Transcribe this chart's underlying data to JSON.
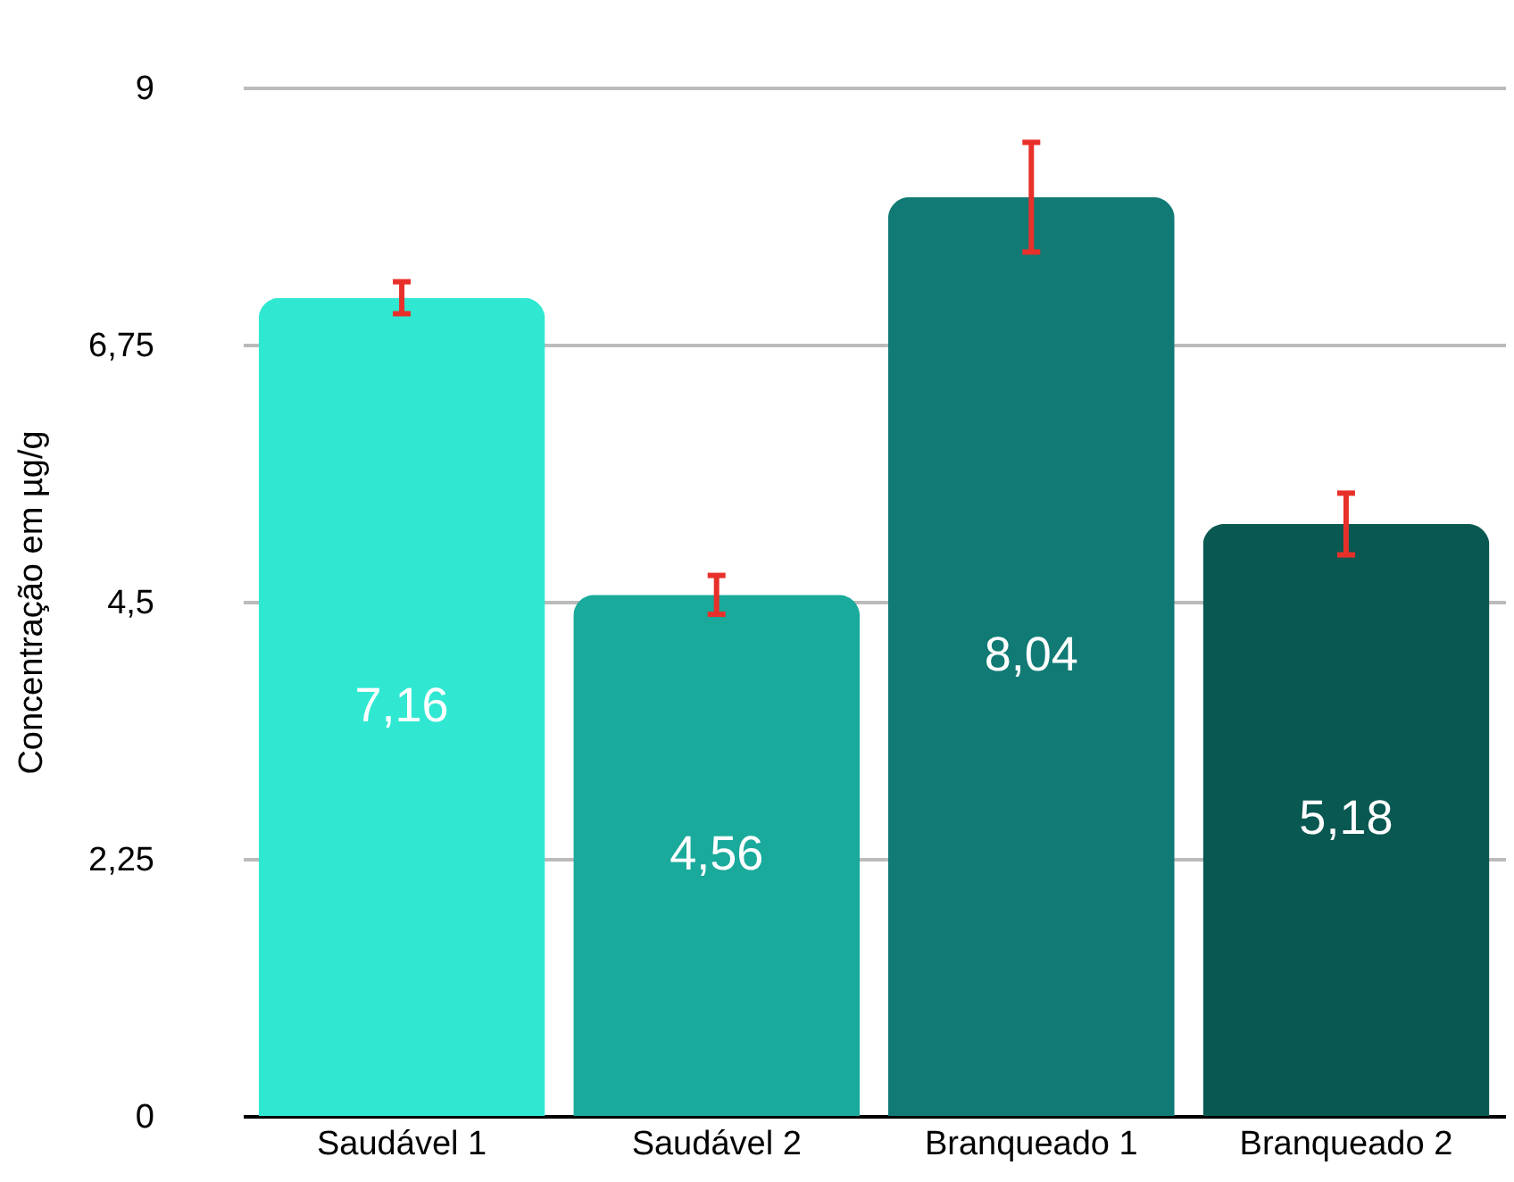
{
  "chart_data": {
    "type": "bar",
    "ylabel": "Concentração em µg/g",
    "categories": [
      "Saudável 1",
      "Saudável 2",
      "Branqueado 1",
      "Branqueado 2"
    ],
    "values": [
      7.16,
      4.56,
      8.04,
      5.18
    ],
    "colors": [
      "#30e8d2",
      "#1aaa9c",
      "#117a74",
      "#0a5852"
    ],
    "errors": [
      0.14,
      0.17,
      0.48,
      0.27
    ],
    "value_labels": [
      "7,16",
      "4,56",
      "8,04",
      "5,18"
    ],
    "ylim": [
      0,
      9
    ],
    "yticks": [
      0,
      {
        "value": 2.25,
        "label": "2,25"
      },
      {
        "value": 4.5,
        "label": "4,5"
      },
      {
        "value": 6.75,
        "label": "6,75"
      },
      9
    ],
    "grid": "y"
  }
}
